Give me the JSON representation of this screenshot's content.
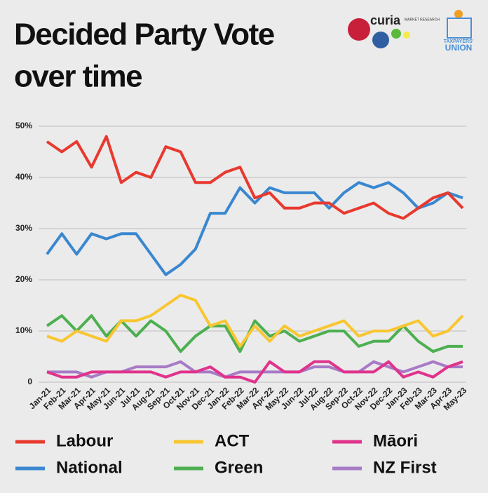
{
  "chart_data": {
    "type": "line",
    "title": "Decided Party Vote over time",
    "logos": {
      "curia": "curia",
      "curia_sub": "MARKET RESEARCH",
      "tu_top": "TAXPAYERS'",
      "tu_bottom": "UNION"
    },
    "categories": [
      "Jan-21",
      "Feb-21",
      "Mar-21",
      "Apr-21",
      "May-21",
      "Jun-21",
      "Jul-21",
      "Aug-21",
      "Sep-21",
      "Oct-21",
      "Nov-21",
      "Dec-21",
      "Jan-22",
      "Feb-22",
      "Mar-22",
      "Apr-22",
      "May-22",
      "Jun-22",
      "Jul-22",
      "Aug-22",
      "Sep-22",
      "Oct-22",
      "Nov-22",
      "Dec-22",
      "Jan-23",
      "Feb-23",
      "Mar-23",
      "Apr-23",
      "May-23"
    ],
    "series": [
      {
        "name": "Labour",
        "color": "#e8392f",
        "values": [
          47,
          45,
          47,
          42,
          48,
          39,
          41,
          40,
          46,
          45,
          39,
          39,
          41,
          42,
          36,
          37,
          34,
          34,
          35,
          35,
          33,
          34,
          35,
          33,
          32,
          34,
          36,
          37,
          34
        ]
      },
      {
        "name": "National",
        "color": "#3a87d0",
        "values": [
          25,
          29,
          25,
          29,
          28,
          29,
          29,
          25,
          21,
          23,
          26,
          33,
          33,
          38,
          35,
          38,
          37,
          37,
          37,
          34,
          37,
          39,
          38,
          39,
          37,
          34,
          35,
          37,
          36
        ]
      },
      {
        "name": "ACT",
        "color": "#f8c630",
        "values": [
          9,
          8,
          10,
          9,
          8,
          12,
          12,
          13,
          15,
          17,
          16,
          11,
          12,
          7,
          11,
          8,
          11,
          9,
          10,
          11,
          12,
          9,
          10,
          10,
          11,
          12,
          9,
          10,
          13
        ]
      },
      {
        "name": "Green",
        "color": "#4caf50",
        "values": [
          11,
          13,
          10,
          13,
          9,
          12,
          9,
          12,
          10,
          6,
          9,
          11,
          11,
          6,
          12,
          9,
          10,
          8,
          9,
          10,
          10,
          7,
          8,
          8,
          11,
          8,
          6,
          7,
          7
        ]
      },
      {
        "name": "Māori",
        "color": "#e0338c",
        "values": [
          2,
          1,
          1,
          2,
          2,
          2,
          2,
          2,
          1,
          2,
          2,
          3,
          1,
          1,
          0,
          4,
          2,
          2,
          4,
          4,
          2,
          2,
          2,
          4,
          1,
          2,
          1,
          3,
          4
        ]
      },
      {
        "name": "NZ First",
        "color": "#a77bc6",
        "values": [
          2,
          2,
          2,
          1,
          2,
          2,
          3,
          3,
          3,
          4,
          2,
          2,
          1,
          2,
          2,
          2,
          2,
          2,
          3,
          3,
          2,
          2,
          4,
          3,
          2,
          3,
          4,
          3,
          3
        ]
      }
    ],
    "ylim": [
      0,
      50
    ],
    "yticks": [
      0,
      {
        "value": 10,
        "label": "10%"
      },
      {
        "value": 20,
        "label": "20%"
      },
      {
        "value": 30,
        "label": "30%"
      },
      {
        "value": 40,
        "label": "40%"
      },
      {
        "value": 50,
        "label": "50%"
      }
    ],
    "grid": true
  }
}
